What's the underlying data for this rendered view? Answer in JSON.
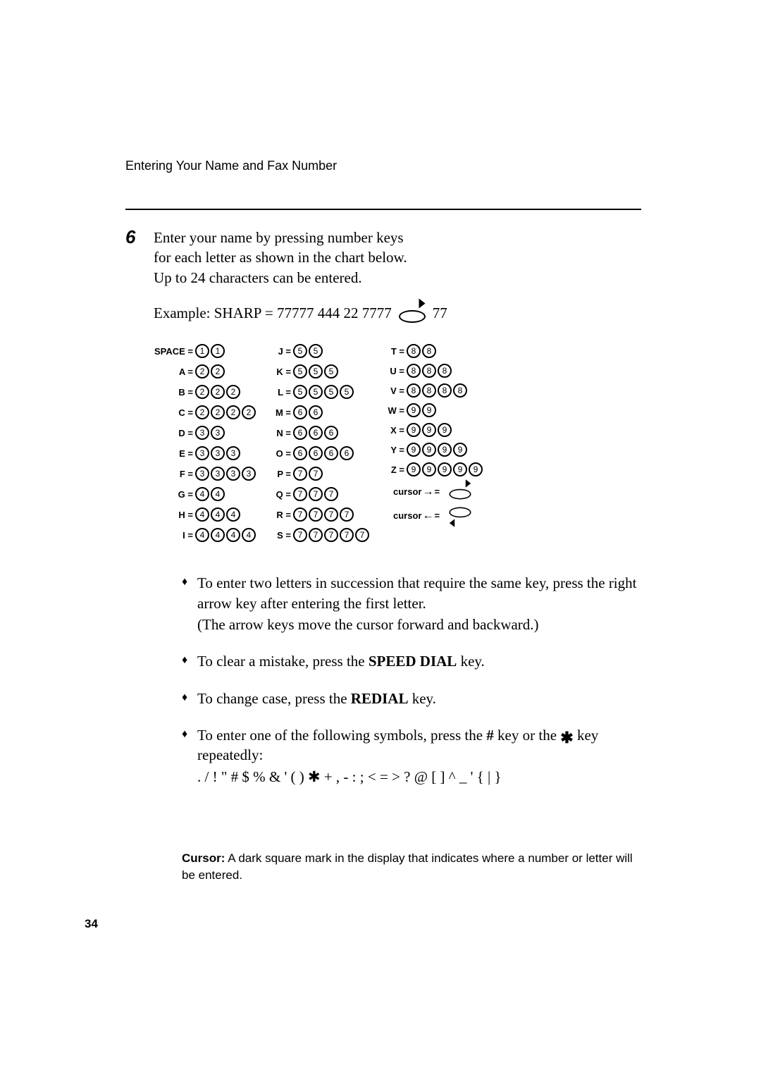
{
  "page": {
    "header": "Entering Your Name and Fax Number",
    "pageNumber": "34"
  },
  "step": {
    "number": "6",
    "instruction": "Enter your name by pressing number keys for each letter as shown in the chart below. Up to 24 characters can be entered.",
    "exampleLabel": "Example: SHARP = 77777  444  22  7777",
    "exampleSuffix": "77"
  },
  "chart": {
    "col1": [
      {
        "label": "SPACE =",
        "keys": [
          "1",
          "1"
        ]
      },
      {
        "label": "A =",
        "keys": [
          "2",
          "2"
        ]
      },
      {
        "label": "B =",
        "keys": [
          "2",
          "2",
          "2"
        ]
      },
      {
        "label": "C =",
        "keys": [
          "2",
          "2",
          "2",
          "2"
        ]
      },
      {
        "label": "D =",
        "keys": [
          "3",
          "3"
        ]
      },
      {
        "label": "E =",
        "keys": [
          "3",
          "3",
          "3"
        ]
      },
      {
        "label": "F =",
        "keys": [
          "3",
          "3",
          "3",
          "3"
        ]
      },
      {
        "label": "G =",
        "keys": [
          "4",
          "4"
        ]
      },
      {
        "label": "H =",
        "keys": [
          "4",
          "4",
          "4"
        ]
      },
      {
        "label": "I =",
        "keys": [
          "4",
          "4",
          "4",
          "4"
        ]
      }
    ],
    "col2": [
      {
        "label": "J =",
        "keys": [
          "5",
          "5"
        ]
      },
      {
        "label": "K =",
        "keys": [
          "5",
          "5",
          "5"
        ]
      },
      {
        "label": "L =",
        "keys": [
          "5",
          "5",
          "5",
          "5"
        ]
      },
      {
        "label": "M =",
        "keys": [
          "6",
          "6"
        ]
      },
      {
        "label": "N =",
        "keys": [
          "6",
          "6",
          "6"
        ]
      },
      {
        "label": "O =",
        "keys": [
          "6",
          "6",
          "6",
          "6"
        ]
      },
      {
        "label": "P =",
        "keys": [
          "7",
          "7"
        ]
      },
      {
        "label": "Q =",
        "keys": [
          "7",
          "7",
          "7"
        ]
      },
      {
        "label": "R =",
        "keys": [
          "7",
          "7",
          "7",
          "7"
        ]
      },
      {
        "label": "S =",
        "keys": [
          "7",
          "7",
          "7",
          "7",
          "7"
        ]
      }
    ],
    "col3": [
      {
        "label": "T =",
        "keys": [
          "8",
          "8"
        ]
      },
      {
        "label": "U =",
        "keys": [
          "8",
          "8",
          "8"
        ]
      },
      {
        "label": "V =",
        "keys": [
          "8",
          "8",
          "8",
          "8"
        ]
      },
      {
        "label": "W =",
        "keys": [
          "9",
          "9"
        ]
      },
      {
        "label": "X =",
        "keys": [
          "9",
          "9",
          "9"
        ]
      },
      {
        "label": "Y =",
        "keys": [
          "9",
          "9",
          "9",
          "9"
        ]
      },
      {
        "label": "Z =",
        "keys": [
          "9",
          "9",
          "9",
          "9",
          "9"
        ]
      }
    ],
    "cursorRight": "cursor",
    "cursorRightEq": " =",
    "cursorLeft": "cursor",
    "cursorLeftEq": " ="
  },
  "bullets": {
    "b1a": "To enter two letters in succession that require the same key, press the right arrow key after entering the first letter.",
    "b1b": "(The arrow keys move the cursor forward and backward.)",
    "b2a": "To clear a mistake, press the ",
    "b2key": "SPEED DIAL",
    "b2b": " key.",
    "b3a": "To change case, press the ",
    "b3key": "REDIAL",
    "b3b": " key.",
    "b4a": "To enter one of the following symbols, press the ",
    "b4hash": "#",
    "b4mid": " key or the ",
    "b4b": " key repeatedly:",
    "b4sym": ". / ! \" # $ % & ' ( ) ✱ + , - : ; < = > ? @ [ ] ^ _ ' { | }"
  },
  "definition": {
    "label": "Cursor:",
    "text": " A dark square mark in the display that indicates where a number or letter will be entered."
  }
}
